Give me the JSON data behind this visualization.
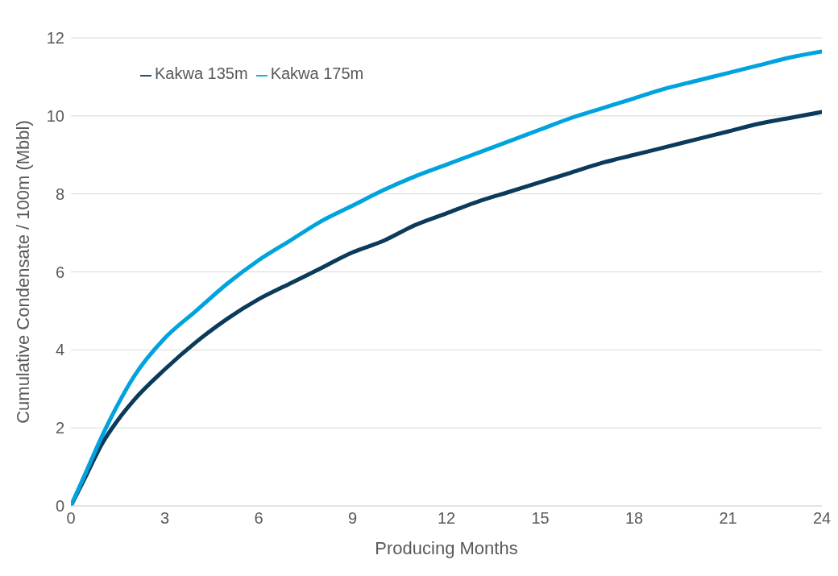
{
  "chart_data": {
    "type": "line",
    "xlabel": "Producing Months",
    "ylabel": "Cumulative Condensate / 100m (Mbbl)",
    "x": [
      0,
      0.5,
      1,
      1.5,
      2,
      3,
      4,
      5,
      6,
      7,
      8,
      9,
      10,
      11,
      12,
      13,
      14,
      15,
      16,
      17,
      18,
      19,
      20,
      21,
      22,
      23,
      24
    ],
    "series": [
      {
        "name": "Kakwa 135m",
        "color": "#0b3a5a",
        "values": [
          0,
          0.8,
          1.6,
          2.2,
          2.7,
          3.5,
          4.2,
          4.8,
          5.3,
          5.7,
          6.1,
          6.5,
          6.8,
          7.2,
          7.5,
          7.8,
          8.05,
          8.3,
          8.55,
          8.8,
          9.0,
          9.2,
          9.4,
          9.6,
          9.8,
          9.95,
          10.1
        ]
      },
      {
        "name": "Kakwa 175m",
        "color": "#00a3dd",
        "values": [
          0,
          0.9,
          1.8,
          2.6,
          3.3,
          4.3,
          5.0,
          5.7,
          6.3,
          6.8,
          7.3,
          7.7,
          8.1,
          8.45,
          8.75,
          9.05,
          9.35,
          9.65,
          9.95,
          10.2,
          10.45,
          10.7,
          10.9,
          11.1,
          11.3,
          11.5,
          11.65
        ]
      }
    ],
    "xlim": [
      0,
      24
    ],
    "xticks": [
      0,
      3,
      6,
      9,
      12,
      15,
      18,
      21,
      24
    ],
    "ylim": [
      0,
      12
    ],
    "yticks": [
      0,
      2,
      4,
      6,
      8,
      10,
      12
    ],
    "grid": "y",
    "legend": "top left",
    "marker": "none",
    "line_style": "solid"
  }
}
